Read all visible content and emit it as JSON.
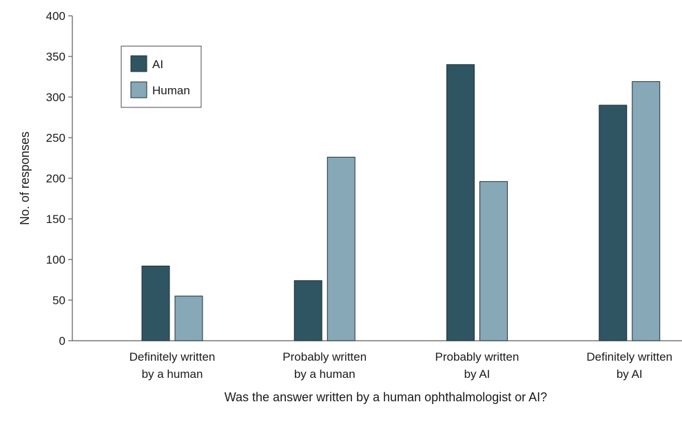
{
  "chart_data": {
    "type": "bar",
    "title": "",
    "xlabel": "Was the answer written by a human ophthalmologist or AI?",
    "ylabel": "No. of responses",
    "categories": [
      [
        "Definitely written",
        "by a human"
      ],
      [
        "Probably written",
        "by a human"
      ],
      [
        "Probably written",
        "by AI"
      ],
      [
        "Definitely written",
        "by AI"
      ]
    ],
    "series": [
      {
        "name": "AI",
        "color": "#2f5462",
        "values": [
          92,
          74,
          340,
          290
        ]
      },
      {
        "name": "Human",
        "color": "#87a8b6",
        "values": [
          55,
          226,
          196,
          319
        ]
      }
    ],
    "ylim": [
      0,
      400
    ],
    "yticks": [
      0,
      50,
      100,
      150,
      200,
      250,
      300,
      350,
      400
    ],
    "grid": false,
    "legend_position": "top-left"
  }
}
